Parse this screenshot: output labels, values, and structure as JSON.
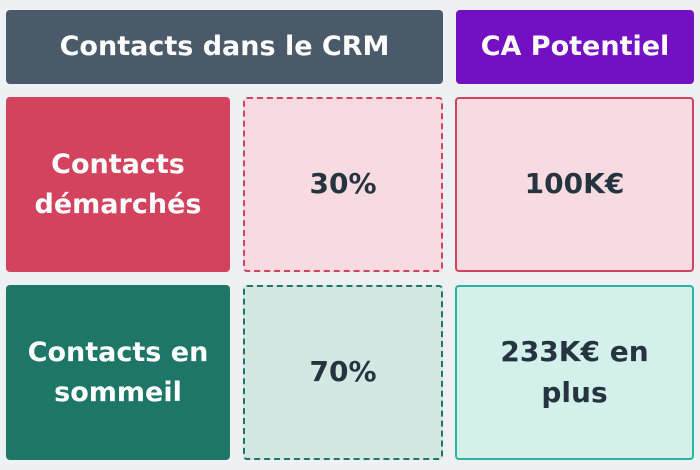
{
  "headers": {
    "crm": "Contacts dans le CRM",
    "ca": "CA Potentiel"
  },
  "rows": [
    {
      "label_line1": "Contacts",
      "label_line2": "démarchés",
      "percent": "30%",
      "ca_line1": "100K€",
      "ca_line2": ""
    },
    {
      "label_line1": "Contacts en",
      "label_line2": "sommeil",
      "percent": "70%",
      "ca_line1": "233K€ en",
      "ca_line2": "plus"
    }
  ],
  "colors": {
    "header_crm": "#4a5a68",
    "header_ca": "#7410c4",
    "demarches": "#d3435d",
    "demarches_light": "#f8dbe0",
    "sommeil": "#1e7766",
    "sommeil_light": "#d5e7e3",
    "sommeil_ca_border": "#2bb39b",
    "sommeil_ca_bg": "#d3f0eb",
    "text_dark": "#26343f"
  }
}
